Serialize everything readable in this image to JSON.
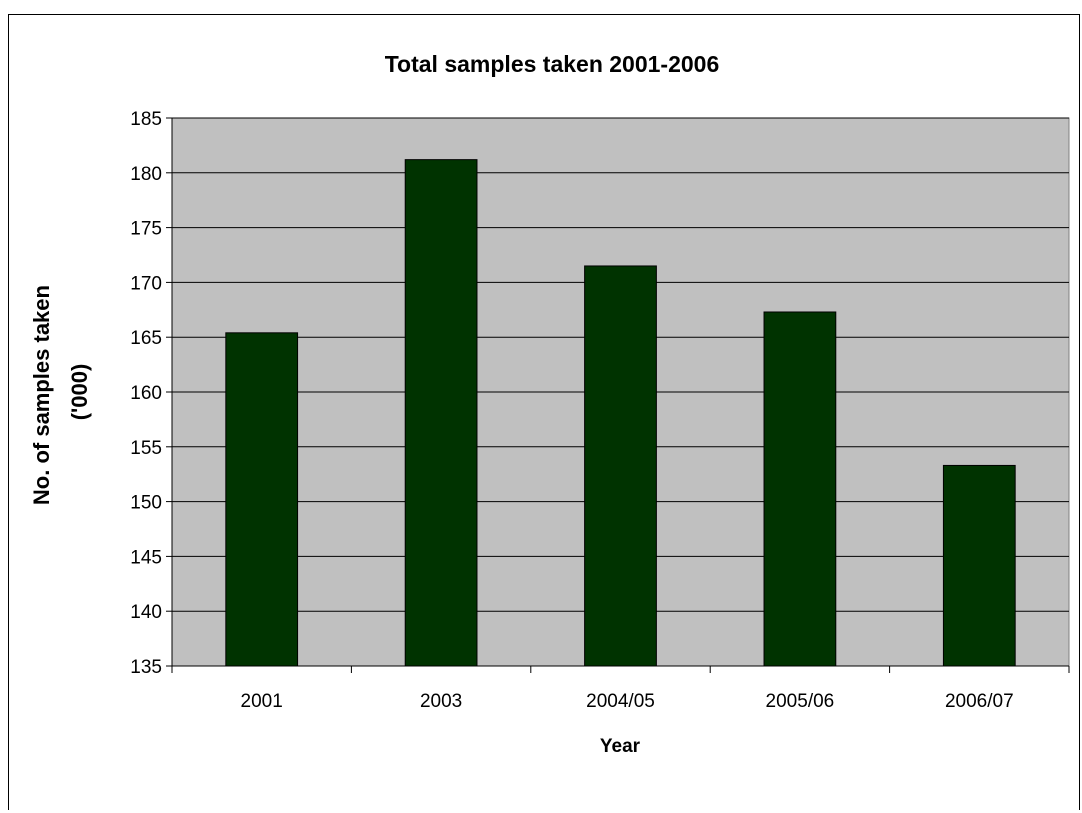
{
  "chart_data": {
    "type": "bar",
    "title": "Total samples taken 2001-2006",
    "xlabel": "Year",
    "ylabel_lines": [
      "No. of samples taken",
      "('000)"
    ],
    "categories": [
      "2001",
      "2003",
      "2004/05",
      "2005/06",
      "2006/07"
    ],
    "values": [
      165.4,
      181.2,
      171.5,
      167.3,
      153.3
    ],
    "ylim": [
      135,
      185
    ],
    "yticks": [
      135,
      140,
      145,
      150,
      155,
      160,
      165,
      170,
      175,
      180,
      185
    ],
    "grid": true,
    "legend": "none",
    "colors": {
      "bar": "#003300",
      "plot_background": "#c0c0c0",
      "grid": "#000000"
    }
  }
}
